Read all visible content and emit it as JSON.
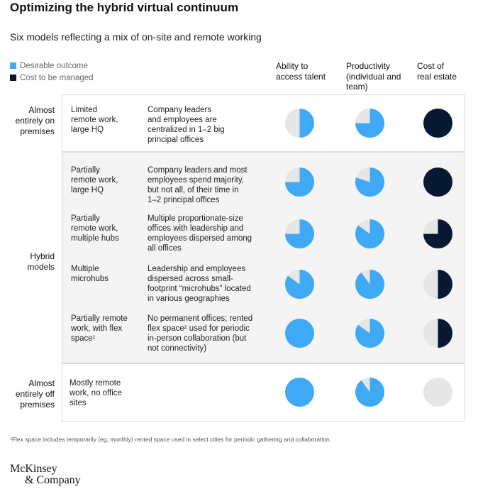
{
  "title": "Optimizing the hybrid virtual continuum",
  "subtitle": "Six models reflecting a mix of on-site and remote working",
  "legend": [
    {
      "label": "Desirable outcome",
      "color": "#3fa9f5"
    },
    {
      "label": "Cost to be managed",
      "color": "#071932"
    }
  ],
  "columns": [
    {
      "line1": "Ability to",
      "line2": "access talent",
      "line3": ""
    },
    {
      "line1": "Productivity",
      "line2": "(individual and",
      "line3": "team)"
    },
    {
      "line1": "Cost of",
      "line2": "real estate",
      "line3": ""
    }
  ],
  "groups": [
    {
      "line1": "Almost",
      "line2": "entirely on",
      "line3": "premises"
    },
    {
      "line1": "Hybrid",
      "line2": "models",
      "line3": ""
    },
    {
      "line1": "Almost",
      "line2": "entirely off",
      "line3": "premises"
    }
  ],
  "chart_data": {
    "type": "pie",
    "title": "Optimizing the hybrid virtual continuum",
    "subtitle": "Six models reflecting a mix of on-site and remote working",
    "columns": [
      "Ability to access talent",
      "Productivity (individual and team)",
      "Cost of real estate"
    ],
    "rows": [
      {
        "group": "Almost entirely on premises",
        "name": [
          "Limited",
          "remote work,",
          "large HQ"
        ],
        "desc": [
          "Company leaders",
          "and employees are",
          "centralized in 1–2 big",
          "principal offices"
        ],
        "fills": [
          0.5,
          0.75,
          1.0
        ]
      },
      {
        "group": "Hybrid models",
        "name": [
          "Partially",
          "remote work,",
          "large HQ"
        ],
        "desc": [
          "Company leaders and most",
          "employees spend majority,",
          "but not all, of their time in",
          "1–2 principal offices"
        ],
        "fills": [
          0.75,
          0.8,
          1.0
        ]
      },
      {
        "group": "Hybrid models",
        "name": [
          "Partially",
          "remote work,",
          "multiple hubs"
        ],
        "desc": [
          "Multiple proportionate-size",
          "offices with leadership and",
          "employees dispersed among",
          "all offices"
        ],
        "fills": [
          0.75,
          0.85,
          0.75
        ]
      },
      {
        "group": "Hybrid models",
        "name": [
          "Multiple",
          "microhubs"
        ],
        "desc": [
          "Leadership and employees",
          "dispersed across small-",
          "footprint “microhubs” located",
          "in various geographies"
        ],
        "fills": [
          0.85,
          0.9,
          0.5
        ]
      },
      {
        "group": "Hybrid models",
        "name": [
          "Partially remote",
          "work, with flex",
          "space¹"
        ],
        "desc": [
          "No permanent offices; rented",
          "flex space² used for periodic",
          "in-person collaboration (but",
          "not connectivity)"
        ],
        "fills": [
          1.0,
          0.85,
          0.5
        ]
      },
      {
        "group": "Almost entirely off premises",
        "name": [
          "Mostly remote",
          "work, no office",
          "sites"
        ],
        "desc": [],
        "fills": [
          1.0,
          0.9,
          0.0
        ]
      }
    ],
    "colors": {
      "talent": "#3fa9f5",
      "productivity": "#3fa9f5",
      "cost": "#071932",
      "empty": "#e6e6e6"
    }
  },
  "footnote": "¹Flex space includes temporarily (eg, monthly) rented space used in select cities for periodic gathering and collaboration.",
  "logo": {
    "line1": "McKinsey",
    "line2": "& Company"
  }
}
